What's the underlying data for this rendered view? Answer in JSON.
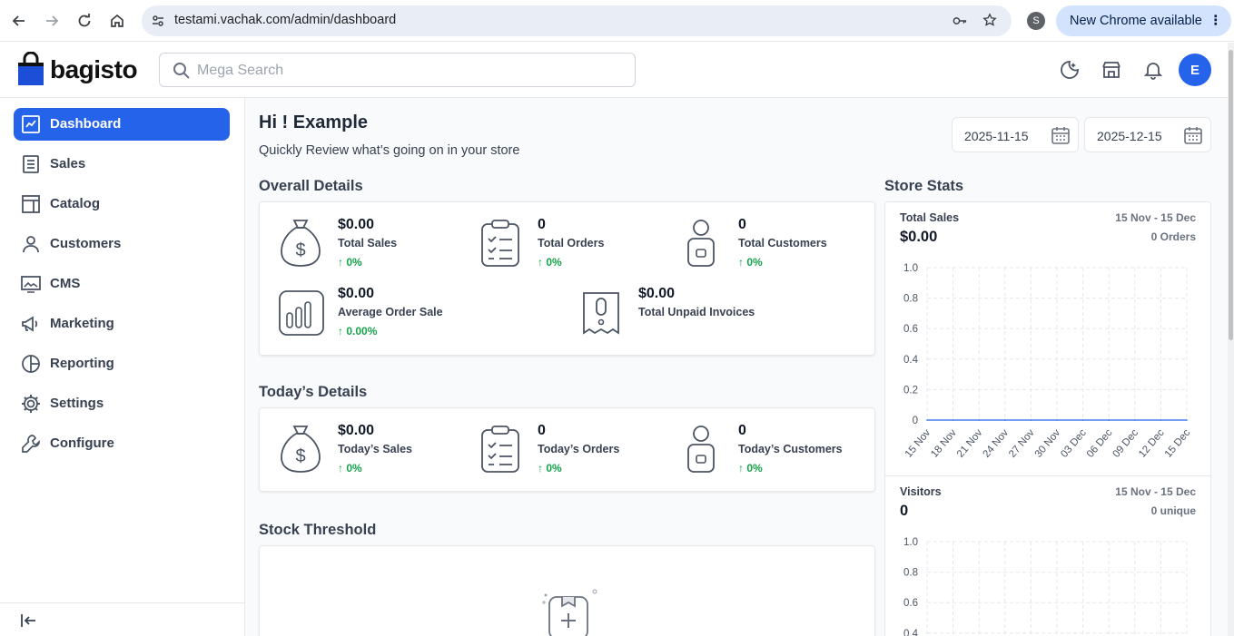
{
  "browser": {
    "url": "testami.vachak.com/admin/dashboard",
    "profile_initial": "S",
    "update_label": "New Chrome available"
  },
  "header": {
    "logo_text": "bagisto",
    "search_placeholder": "Mega Search",
    "avatar_initial": "E"
  },
  "sidebar": {
    "items": [
      {
        "label": "Dashboard",
        "icon": "dashboard-icon",
        "active": true
      },
      {
        "label": "Sales",
        "icon": "receipt-icon"
      },
      {
        "label": "Catalog",
        "icon": "catalog-icon"
      },
      {
        "label": "Customers",
        "icon": "user-icon"
      },
      {
        "label": "CMS",
        "icon": "cms-icon"
      },
      {
        "label": "Marketing",
        "icon": "megaphone-icon"
      },
      {
        "label": "Reporting",
        "icon": "pie-chart-icon"
      },
      {
        "label": "Settings",
        "icon": "gear-icon"
      },
      {
        "label": "Configure",
        "icon": "wrench-icon"
      }
    ]
  },
  "main": {
    "greeting": "Hi ! Example",
    "subtitle": "Quickly Review what’s going on in your store",
    "date_from": "2025-11-15",
    "date_to": "2025-12-15",
    "overall_title": "Overall Details",
    "overall": [
      {
        "value": "$0.00",
        "label": "Total Sales",
        "change": "0%"
      },
      {
        "value": "0",
        "label": "Total Orders",
        "change": "0%"
      },
      {
        "value": "0",
        "label": "Total Customers",
        "change": "0%"
      },
      {
        "value": "$0.00",
        "label": "Average Order Sale",
        "change": "0.00%"
      },
      {
        "value": "$0.00",
        "label": "Total Unpaid Invoices"
      }
    ],
    "today_title": "Today’s Details",
    "today": [
      {
        "value": "$0.00",
        "label": "Today’s Sales",
        "change": "0%"
      },
      {
        "value": "0",
        "label": "Today’s Orders",
        "change": "0%"
      },
      {
        "value": "0",
        "label": "Today’s Customers",
        "change": "0%"
      }
    ],
    "stock_title": "Stock Threshold"
  },
  "store_stats": {
    "title": "Store Stats",
    "sales": {
      "title": "Total Sales",
      "value": "$0.00",
      "range": "15 Nov - 15 Dec",
      "sub": "0 Orders"
    },
    "visitors": {
      "title": "Visitors",
      "value": "0",
      "range": "15 Nov - 15 Dec",
      "sub": "0 unique"
    }
  },
  "chart_data": [
    {
      "type": "line",
      "categories": [
        "15 Nov",
        "18 Nov",
        "21 Nov",
        "24 Nov",
        "27 Nov",
        "30 Nov",
        "03 Dec",
        "06 Dec",
        "09 Dec",
        "12 Dec",
        "15 Dec"
      ],
      "y_ticks": [
        "1.0",
        "0.8",
        "0.6",
        "0.4",
        "0.2",
        "0"
      ],
      "values": [
        0,
        0,
        0,
        0,
        0,
        0,
        0,
        0,
        0,
        0,
        0
      ],
      "ylim": [
        0,
        1
      ],
      "grid": true,
      "color": "#2563eb"
    },
    {
      "type": "line",
      "y_ticks": [
        "1.0",
        "0.8",
        "0.6",
        "0.4"
      ],
      "ylim": [
        0,
        1
      ],
      "grid": true
    }
  ]
}
